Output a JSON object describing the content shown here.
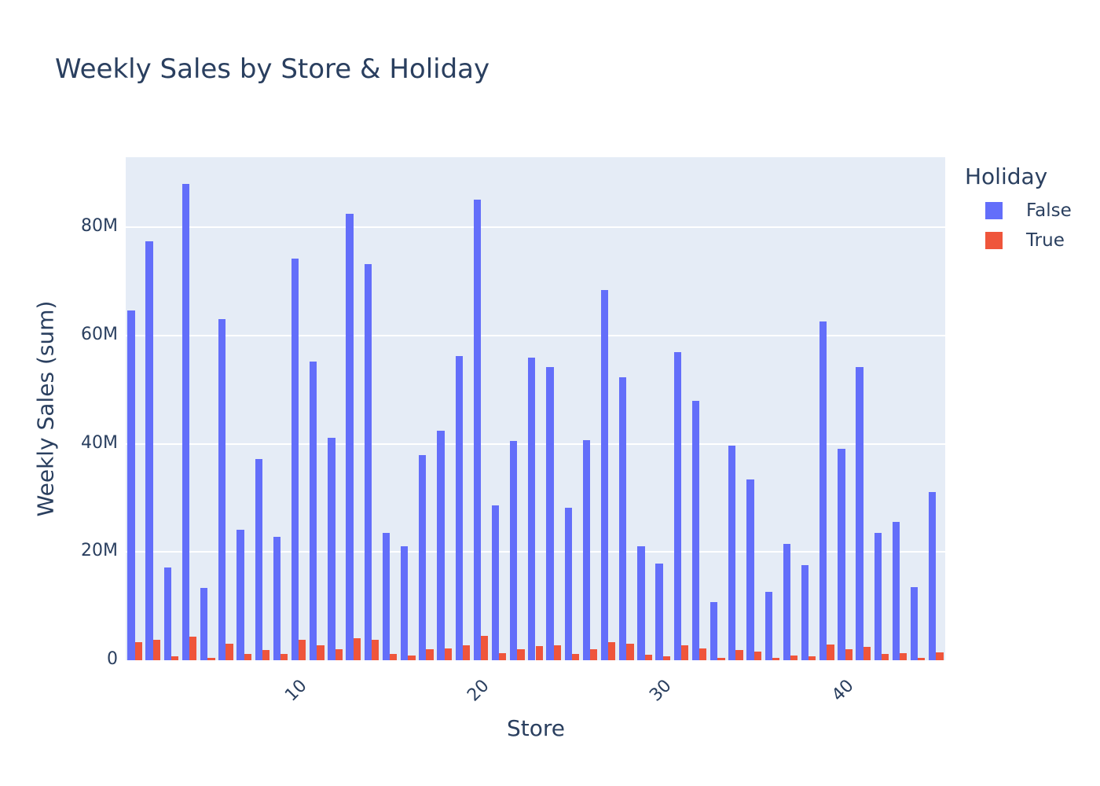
{
  "chart_data": {
    "type": "bar",
    "title": "Weekly Sales by Store & Holiday",
    "xlabel": "Store",
    "ylabel": "Weekly Sales (sum)",
    "ylim": [
      0,
      93000000
    ],
    "yticks": [
      0,
      20000000,
      40000000,
      60000000,
      80000000
    ],
    "ytick_labels": [
      "0",
      "20M",
      "40M",
      "60M",
      "80M"
    ],
    "xticks": [
      10,
      20,
      30,
      40
    ],
    "xtick_labels": [
      "10",
      "20",
      "30",
      "40"
    ],
    "grid": true,
    "legend_title": "Holiday",
    "legend_position": "right",
    "categories": [
      1,
      2,
      3,
      4,
      5,
      6,
      7,
      8,
      9,
      10,
      11,
      12,
      13,
      14,
      15,
      16,
      17,
      18,
      19,
      20,
      21,
      22,
      23,
      24,
      25,
      26,
      27,
      28,
      29,
      30,
      31,
      32,
      33,
      34,
      35,
      36,
      37,
      38,
      39,
      40,
      41,
      42,
      43,
      44,
      45
    ],
    "series": [
      {
        "name": "False",
        "color": "#636efa",
        "values": [
          64.6,
          77.4,
          17.1,
          88.1,
          13.4,
          63.0,
          24.1,
          37.2,
          22.8,
          74.2,
          55.2,
          41.1,
          82.5,
          73.3,
          23.5,
          21.1,
          38.0,
          42.5,
          56.2,
          85.2,
          28.7,
          40.5,
          55.9,
          54.2,
          28.2,
          40.7,
          68.4,
          52.3,
          21.1,
          17.9,
          56.9,
          47.9,
          10.7,
          39.6,
          33.4,
          12.6,
          21.5,
          17.6,
          62.7,
          39.1,
          54.2,
          23.5,
          25.6,
          13.5,
          31.1
        ]
      },
      {
        "name": "True",
        "color": "#ef553b",
        "values": [
          3.3,
          3.8,
          0.8,
          4.3,
          0.5,
          3.1,
          1.1,
          1.9,
          1.1,
          3.8,
          2.7,
          2.0,
          4.1,
          3.8,
          1.1,
          0.9,
          2.0,
          2.2,
          2.8,
          4.5,
          1.3,
          2.0,
          2.6,
          2.7,
          1.2,
          2.0,
          3.4,
          3.0,
          1.0,
          0.8,
          2.8,
          2.2,
          0.4,
          1.9,
          1.6,
          0.5,
          0.9,
          0.8,
          2.9,
          2.0,
          2.5,
          1.2,
          1.3,
          0.5,
          1.5
        ]
      }
    ],
    "value_units": "millions"
  }
}
